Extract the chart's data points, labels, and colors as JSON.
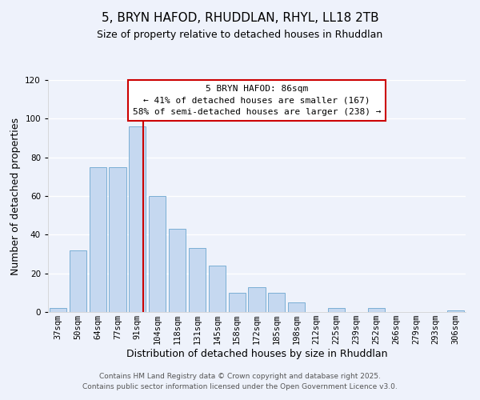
{
  "title": "5, BRYN HAFOD, RHUDDLAN, RHYL, LL18 2TB",
  "subtitle": "Size of property relative to detached houses in Rhuddlan",
  "xlabel": "Distribution of detached houses by size in Rhuddlan",
  "ylabel": "Number of detached properties",
  "bar_labels": [
    "37sqm",
    "50sqm",
    "64sqm",
    "77sqm",
    "91sqm",
    "104sqm",
    "118sqm",
    "131sqm",
    "145sqm",
    "158sqm",
    "172sqm",
    "185sqm",
    "198sqm",
    "212sqm",
    "225sqm",
    "239sqm",
    "252sqm",
    "266sqm",
    "279sqm",
    "293sqm",
    "306sqm"
  ],
  "bar_values": [
    2,
    32,
    75,
    75,
    96,
    60,
    43,
    33,
    24,
    10,
    13,
    10,
    5,
    0,
    2,
    0,
    2,
    0,
    0,
    0,
    1
  ],
  "bar_color": "#c5d8f0",
  "bar_edge_color": "#7bafd4",
  "ylim": [
    0,
    120
  ],
  "yticks": [
    0,
    20,
    40,
    60,
    80,
    100,
    120
  ],
  "vline_color": "#cc0000",
  "vline_index": 4,
  "annotation_title": "5 BRYN HAFOD: 86sqm",
  "annotation_line1": "← 41% of detached houses are smaller (167)",
  "annotation_line2": "58% of semi-detached houses are larger (238) →",
  "footer1": "Contains HM Land Registry data © Crown copyright and database right 2025.",
  "footer2": "Contains public sector information licensed under the Open Government Licence v3.0.",
  "bg_color": "#eef2fb",
  "grid_color": "#ffffff",
  "title_fontsize": 11,
  "subtitle_fontsize": 9,
  "axis_label_fontsize": 9,
  "tick_fontsize": 7.5,
  "footer_fontsize": 6.5,
  "annotation_fontsize": 8
}
